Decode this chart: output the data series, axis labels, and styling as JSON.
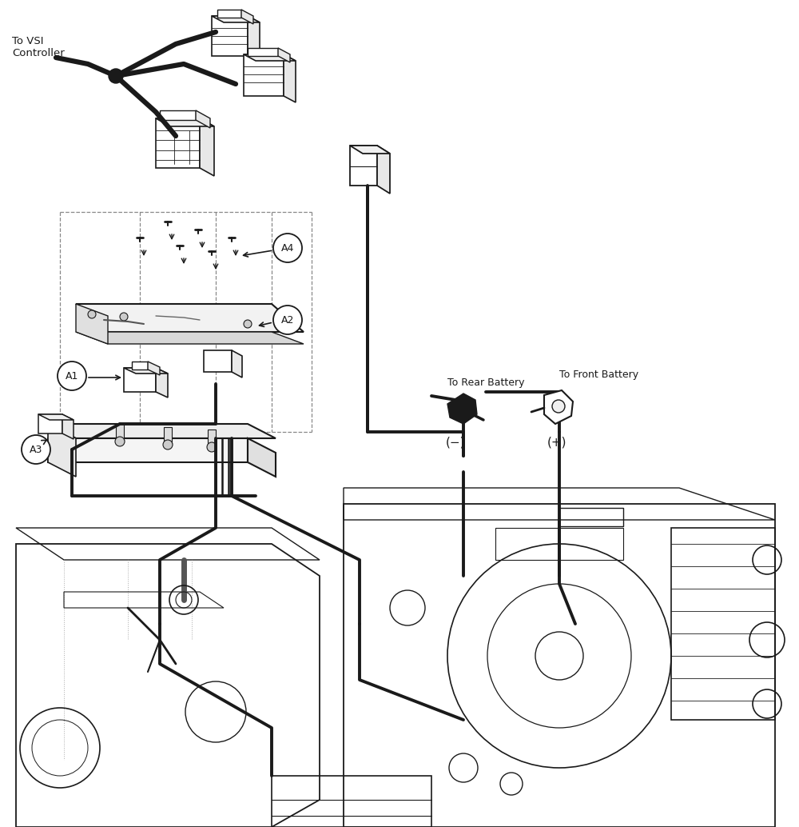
{
  "bg_color": "#ffffff",
  "line_color": "#1a1a1a",
  "text_vsi": "To VSI\nController",
  "text_rear_battery": "To Rear Battery",
  "text_front_battery": "To Front Battery",
  "text_neg": "(−)",
  "text_pos": "(+)",
  "label_A1": "A1",
  "label_A2": "A2",
  "label_A3": "A3",
  "label_A4": "A4",
  "figsize": [
    10.0,
    10.34
  ],
  "dpi": 100
}
